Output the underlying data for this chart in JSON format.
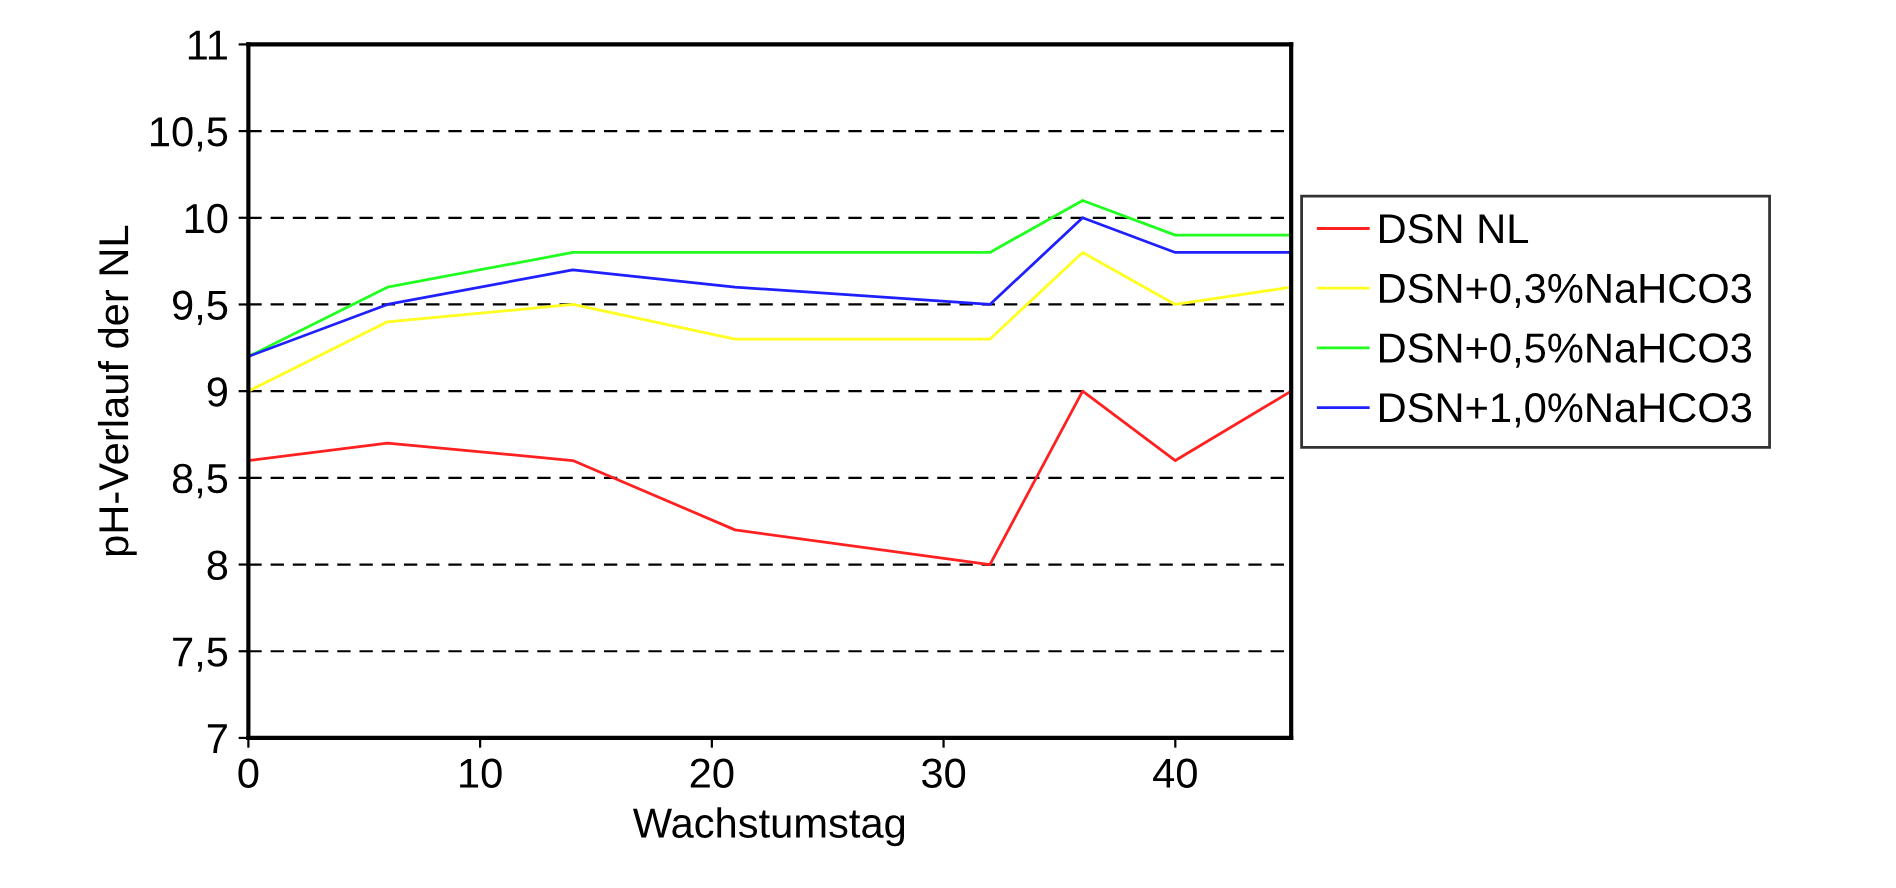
{
  "chart_data": {
    "type": "line",
    "xlabel": "Wachstumstag",
    "ylabel": "pH-Verlauf der NL",
    "x": [
      0,
      6,
      14,
      21,
      32,
      36,
      40,
      45
    ],
    "series": [
      {
        "name": "DSN NL",
        "color": "#ff2020",
        "values": [
          8.6,
          8.7,
          8.6,
          8.2,
          8.0,
          9.0,
          8.6,
          9.0
        ]
      },
      {
        "name": "DSN+0,3%NaHCO3",
        "color": "#ffff20",
        "values": [
          9.0,
          9.4,
          9.5,
          9.3,
          9.3,
          9.8,
          9.5,
          9.6
        ]
      },
      {
        "name": "DSN+0,5%NaHCO3",
        "color": "#20ff20",
        "values": [
          9.2,
          9.6,
          9.8,
          9.8,
          9.8,
          10.1,
          9.9,
          9.9
        ]
      },
      {
        "name": "DSN+1,0%NaHCO3",
        "color": "#2020ff",
        "values": [
          9.2,
          9.5,
          9.7,
          9.6,
          9.5,
          10.0,
          9.8,
          9.8
        ]
      }
    ],
    "xlim": [
      0,
      45
    ],
    "xticks": [
      0,
      10,
      20,
      30,
      40
    ],
    "ylim": [
      7,
      11
    ],
    "yticks": [
      7,
      {
        "value": 7.5,
        "label": "7,5"
      },
      8,
      {
        "value": 8.5,
        "label": "8,5"
      },
      9,
      {
        "value": 9.5,
        "label": "9,5"
      },
      10,
      {
        "value": 10.5,
        "label": "10,5"
      },
      11
    ],
    "grid": "y",
    "legend": "right",
    "marker": "none",
    "line_style": "solid"
  }
}
